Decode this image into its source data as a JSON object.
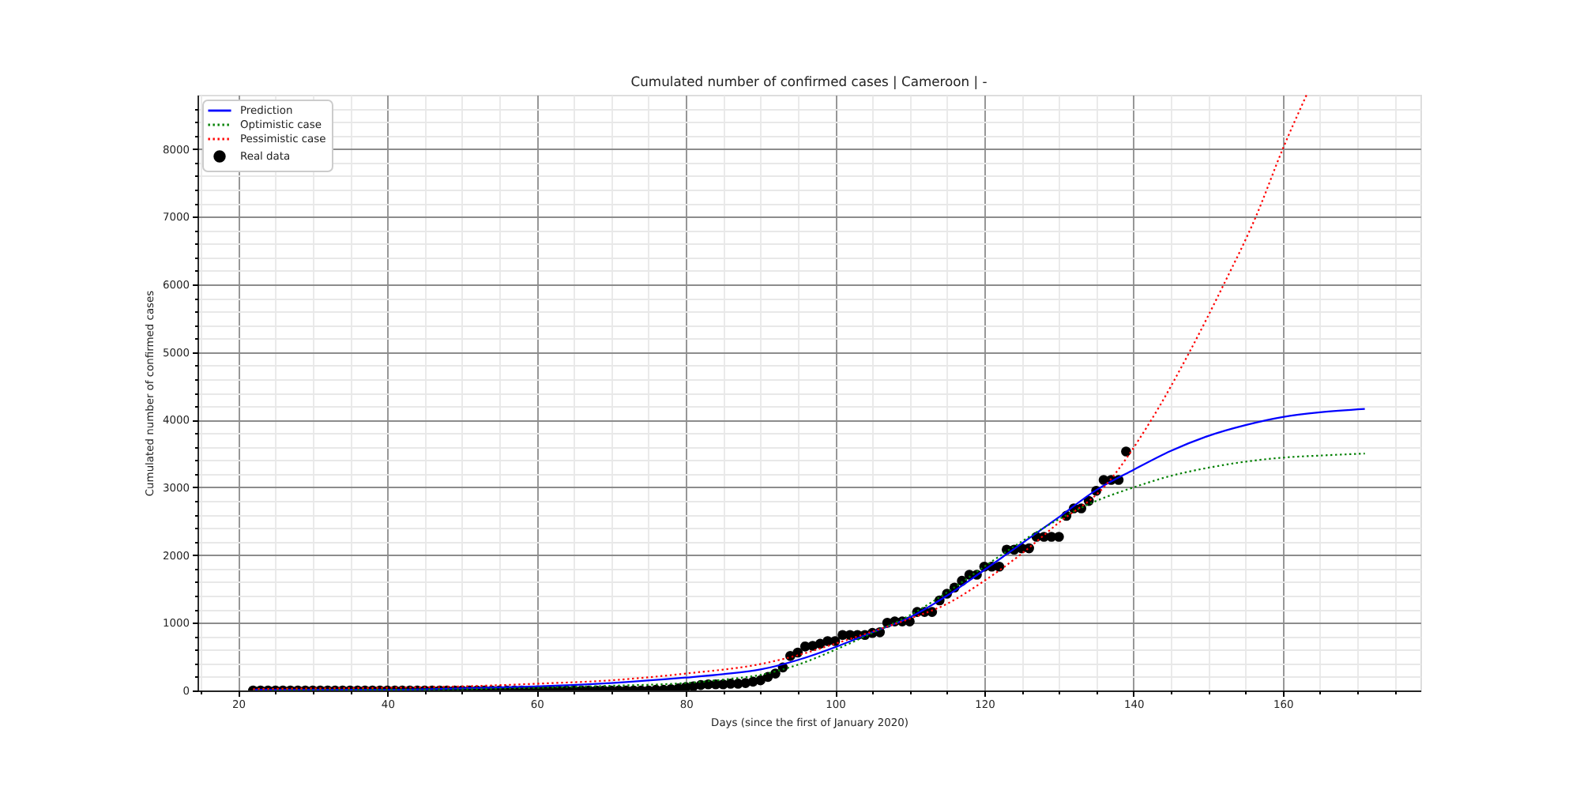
{
  "chart_data": {
    "type": "line",
    "title": "Cumulated number of confirmed cases | Cameroon | -",
    "xlabel": "Days (since the first of January 2020)",
    "ylabel": "Cumulated number of confirmed cases",
    "xlim": [
      14.55,
      178.45
    ],
    "ylim": [
      0,
      8800
    ],
    "xticks": [
      {
        "value": 15,
        "label": null
      },
      20,
      {
        "value": 25,
        "label": null
      },
      {
        "value": 30,
        "label": null
      },
      {
        "value": 35,
        "label": null
      },
      40,
      {
        "value": 45,
        "label": null
      },
      {
        "value": 50,
        "label": null
      },
      {
        "value": 55,
        "label": null
      },
      60,
      {
        "value": 65,
        "label": null
      },
      {
        "value": 70,
        "label": null
      },
      {
        "value": 75,
        "label": null
      },
      80,
      {
        "value": 85,
        "label": null
      },
      {
        "value": 90,
        "label": null
      },
      {
        "value": 95,
        "label": null
      },
      100,
      {
        "value": 105,
        "label": null
      },
      {
        "value": 110,
        "label": null
      },
      {
        "value": 115,
        "label": null
      },
      120,
      {
        "value": 125,
        "label": null
      },
      {
        "value": 130,
        "label": null
      },
      {
        "value": 135,
        "label": null
      },
      140,
      {
        "value": 145,
        "label": null
      },
      {
        "value": 150,
        "label": null
      },
      {
        "value": 155,
        "label": null
      },
      160,
      {
        "value": 165,
        "label": null
      },
      {
        "value": 170,
        "label": null
      },
      {
        "value": 175,
        "label": null
      }
    ],
    "yticks": [
      0,
      {
        "value": 200,
        "label": null
      },
      {
        "value": 400,
        "label": null
      },
      {
        "value": 600,
        "label": null
      },
      {
        "value": 800,
        "label": null
      },
      1000,
      {
        "value": 1200,
        "label": null
      },
      {
        "value": 1400,
        "label": null
      },
      {
        "value": 1600,
        "label": null
      },
      {
        "value": 1800,
        "label": null
      },
      2000,
      {
        "value": 2200,
        "label": null
      },
      {
        "value": 2400,
        "label": null
      },
      {
        "value": 2600,
        "label": null
      },
      {
        "value": 2800,
        "label": null
      },
      3000,
      {
        "value": 3200,
        "label": null
      },
      {
        "value": 3400,
        "label": null
      },
      {
        "value": 3600,
        "label": null
      },
      {
        "value": 3800,
        "label": null
      },
      4000,
      {
        "value": 4200,
        "label": null
      },
      {
        "value": 4400,
        "label": null
      },
      {
        "value": 4600,
        "label": null
      },
      {
        "value": 4800,
        "label": null
      },
      5000,
      {
        "value": 5200,
        "label": null
      },
      {
        "value": 5400,
        "label": null
      },
      {
        "value": 5600,
        "label": null
      },
      {
        "value": 5800,
        "label": null
      },
      6000,
      {
        "value": 6200,
        "label": null
      },
      {
        "value": 6400,
        "label": null
      },
      {
        "value": 6600,
        "label": null
      },
      {
        "value": 6800,
        "label": null
      },
      7000,
      {
        "value": 7200,
        "label": null
      },
      {
        "value": 7400,
        "label": null
      },
      {
        "value": 7600,
        "label": null
      },
      {
        "value": 7800,
        "label": null
      },
      8000,
      {
        "value": 8200,
        "label": null
      },
      {
        "value": 8400,
        "label": null
      },
      {
        "value": 8600,
        "label": null
      }
    ],
    "grid": true,
    "legend": "top left",
    "series": [
      {
        "name": "Prediction",
        "color": "#0000ff",
        "line_style": "solid",
        "marker": "none",
        "x": [
          22,
          30,
          40,
          50,
          60,
          70,
          80,
          85,
          90,
          95,
          100,
          105,
          110,
          115,
          120,
          125,
          130,
          135,
          140,
          145,
          150,
          155,
          160,
          165,
          171
        ],
        "values": [
          10,
          10,
          10,
          30,
          60,
          110,
          190,
          240,
          310,
          450,
          640,
          860,
          1080,
          1400,
          1780,
          2170,
          2560,
          2960,
          3260,
          3540,
          3760,
          3920,
          4040,
          4110,
          4160
        ]
      },
      {
        "name": "Optimistic case",
        "color": "#008000",
        "line_style": "dotted",
        "marker": "none",
        "x": [
          22,
          30,
          40,
          50,
          60,
          70,
          80,
          85,
          90,
          95,
          100,
          105,
          110,
          115,
          120,
          125,
          130,
          135,
          140,
          145,
          150,
          155,
          160,
          165,
          171
        ],
        "values": [
          0,
          10,
          10,
          20,
          40,
          70,
          110,
          160,
          230,
          380,
          600,
          850,
          1110,
          1450,
          1830,
          2200,
          2530,
          2800,
          3000,
          3170,
          3290,
          3380,
          3440,
          3470,
          3500
        ]
      },
      {
        "name": "Pessimistic case",
        "color": "#ff0000",
        "line_style": "dotted",
        "marker": "none",
        "x": [
          22,
          30,
          40,
          50,
          60,
          70,
          80,
          90,
          95,
          100,
          105,
          110,
          115,
          120,
          125,
          130,
          136,
          142.4,
          147.5,
          152.1,
          156.4,
          160,
          163.2
        ],
        "values": [
          20,
          30,
          40,
          60,
          100,
          150,
          250,
          390,
          520,
          690,
          870,
          1060,
          1280,
          1620,
          2020,
          2480,
          3000,
          4000,
          5000,
          6000,
          7000,
          8000,
          8800
        ]
      },
      {
        "name": "Real data",
        "type": "scatter",
        "color": "#000000",
        "marker": "circle",
        "x": [
          22,
          23,
          24,
          25,
          26,
          27,
          28,
          29,
          30,
          31,
          32,
          33,
          34,
          35,
          36,
          37,
          38,
          39,
          40,
          41,
          42,
          43,
          44,
          45,
          46,
          47,
          48,
          49,
          50,
          51,
          52,
          53,
          54,
          55,
          56,
          57,
          58,
          59,
          60,
          61,
          62,
          63,
          64,
          65,
          66,
          67,
          68,
          69,
          70,
          71,
          72,
          73,
          74,
          75,
          76,
          77,
          78,
          79,
          80,
          81,
          82,
          83,
          84,
          85,
          86,
          87,
          88,
          89,
          90,
          91,
          92,
          93,
          94,
          95,
          96,
          97,
          98,
          99,
          100,
          101,
          102,
          103,
          104,
          105,
          106,
          107,
          108,
          109,
          110,
          111,
          112,
          113,
          114,
          115,
          116,
          117,
          118,
          119,
          120,
          121,
          122,
          123,
          124,
          125,
          126,
          127,
          128,
          129,
          130,
          131,
          132,
          133,
          134,
          135,
          136,
          137,
          138,
          139
        ],
        "values": [
          0,
          0,
          0,
          0,
          0,
          0,
          0,
          0,
          0,
          0,
          0,
          0,
          0,
          0,
          0,
          0,
          0,
          0,
          0,
          0,
          0,
          0,
          0,
          0,
          0,
          0,
          0,
          0,
          0,
          0,
          0,
          0,
          0,
          0,
          0,
          0,
          0,
          0,
          0,
          0,
          0,
          0,
          0,
          0,
          0,
          0,
          0,
          0,
          0,
          0,
          0,
          0,
          0,
          0,
          10,
          10,
          20,
          30,
          50,
          60,
          80,
          90,
          90,
          90,
          100,
          100,
          110,
          130,
          150,
          200,
          250,
          340,
          510,
          560,
          650,
          660,
          690,
          730,
          730,
          820,
          820,
          820,
          820,
          850,
          860,
          1000,
          1020,
          1020,
          1020,
          1160,
          1160,
          1160,
          1330,
          1430,
          1520,
          1620,
          1710,
          1710,
          1830,
          1830,
          1830,
          2080,
          2080,
          2100,
          2100,
          2270,
          2270,
          2270,
          2270,
          2580,
          2690,
          2690,
          2800,
          2950,
          3110,
          3110,
          3110,
          3530
        ]
      }
    ]
  }
}
